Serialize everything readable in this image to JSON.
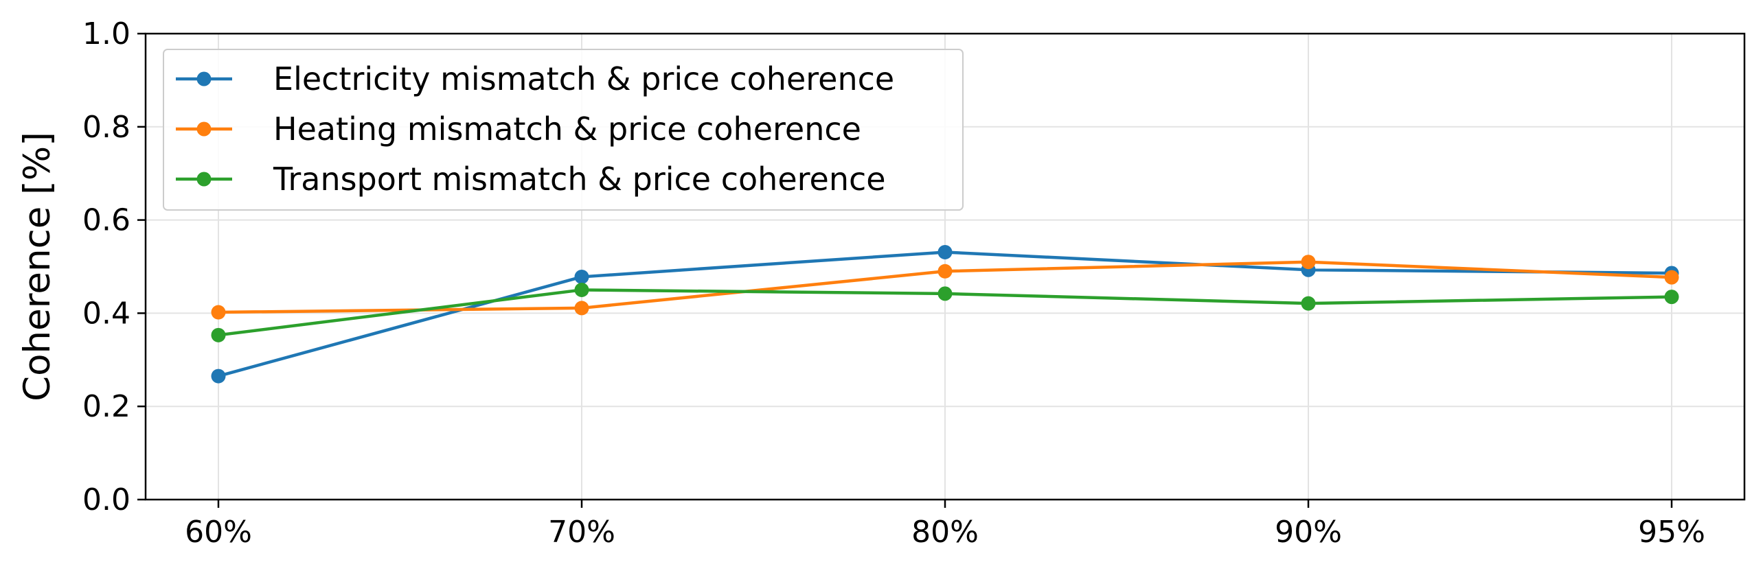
{
  "chart_data": {
    "type": "line",
    "title": "",
    "xlabel": "",
    "ylabel": "Coherence [%]",
    "categories": [
      "60%",
      "70%",
      "80%",
      "90%",
      "95%"
    ],
    "ylim": [
      0.0,
      1.0
    ],
    "yticks": [
      "0.0",
      "0.2",
      "0.4",
      "0.6",
      "0.8",
      "1.0"
    ],
    "grid": true,
    "legend_position": "upper-left",
    "series": [
      {
        "name": "Electricity mismatch & price coherence",
        "color": "#1f77b4",
        "values": [
          0.265,
          0.478,
          0.531,
          0.493,
          0.486
        ]
      },
      {
        "name": "Heating mismatch & price coherence",
        "color": "#ff7f0e",
        "values": [
          0.402,
          0.411,
          0.49,
          0.51,
          0.477
        ]
      },
      {
        "name": "Transport mismatch & price coherence",
        "color": "#2ca02c",
        "values": [
          0.353,
          0.45,
          0.442,
          0.421,
          0.435
        ]
      }
    ]
  }
}
